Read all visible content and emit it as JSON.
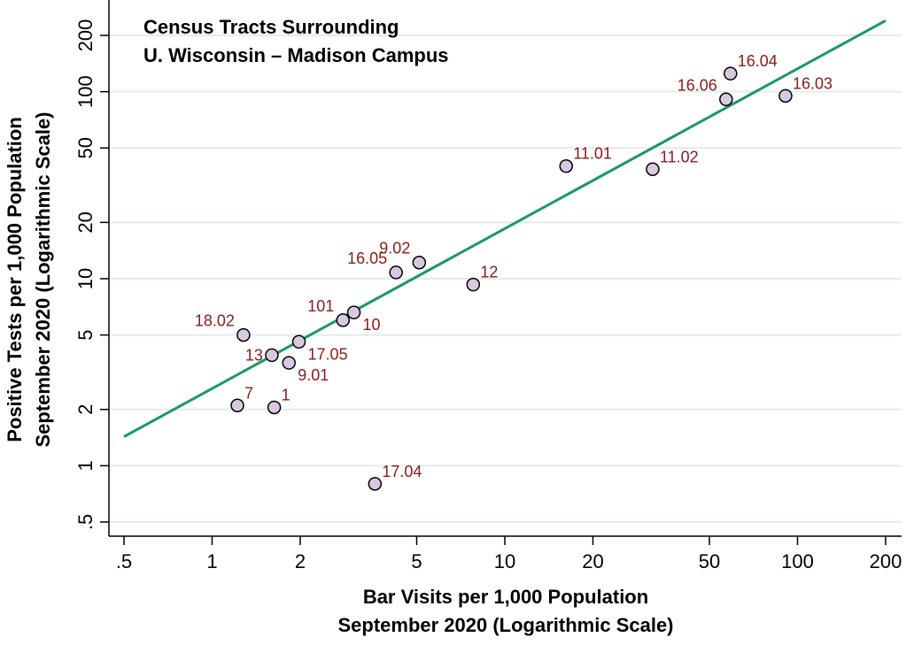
{
  "chart_data": {
    "type": "scatter",
    "title_lines": [
      "Census Tracts Surrounding",
      "U. Wisconsin – Madison Campus"
    ],
    "xlabel_lines": [
      "Bar Visits per 1,000 Population",
      "September 2020 (Logarithmic Scale)"
    ],
    "ylabel_lines": [
      "Positive Tests per 1,000 Population",
      "September 2020 (Logarithmic Scale)"
    ],
    "x_scale": "log",
    "y_scale": "log",
    "xlim": [
      0.45,
      220
    ],
    "ylim": [
      0.43,
      300
    ],
    "x_ticks": [
      0.5,
      1,
      2,
      5,
      10,
      20,
      50,
      100,
      200
    ],
    "x_tick_labels": [
      ".5",
      "1",
      "2",
      "5",
      "10",
      "20",
      "50",
      "100",
      "200"
    ],
    "y_ticks": [
      0.5,
      1,
      2,
      5,
      10,
      20,
      50,
      100,
      200
    ],
    "y_tick_labels": [
      ".5",
      "1",
      "2",
      "5",
      "10",
      "20",
      "50",
      "100",
      "200"
    ],
    "grid": "horizontal",
    "points": [
      {
        "label": "16.04",
        "x": 59,
        "y": 125,
        "label_pos": "upper-right"
      },
      {
        "label": "16.06",
        "x": 57,
        "y": 91,
        "label_pos": "upper-left"
      },
      {
        "label": "16.03",
        "x": 91,
        "y": 95,
        "label_pos": "upper-right"
      },
      {
        "label": "11.01",
        "x": 16.2,
        "y": 40,
        "label_pos": "upper-right"
      },
      {
        "label": "11.02",
        "x": 32,
        "y": 38.5,
        "label_pos": "upper-right"
      },
      {
        "label": "9.02",
        "x": 5.1,
        "y": 12.2,
        "label_pos": "upper-left"
      },
      {
        "label": "16.05",
        "x": 4.25,
        "y": 10.8,
        "label_pos": "upper-left"
      },
      {
        "label": "12",
        "x": 7.8,
        "y": 9.3,
        "label_pos": "upper-right"
      },
      {
        "label": "101",
        "x": 2.8,
        "y": 6.0,
        "label_pos": "upper-left"
      },
      {
        "label": "10",
        "x": 3.05,
        "y": 6.6,
        "label_pos": "lower-right"
      },
      {
        "label": "18.02",
        "x": 1.28,
        "y": 5.0,
        "label_pos": "upper-left"
      },
      {
        "label": "17.05",
        "x": 1.98,
        "y": 4.6,
        "label_pos": "lower-right"
      },
      {
        "label": "13",
        "x": 1.6,
        "y": 3.9,
        "label_pos": "left"
      },
      {
        "label": "9.01",
        "x": 1.83,
        "y": 3.55,
        "label_pos": "lower-right"
      },
      {
        "label": "7",
        "x": 1.22,
        "y": 2.1,
        "label_pos": "upper-right"
      },
      {
        "label": "1",
        "x": 1.63,
        "y": 2.05,
        "label_pos": "upper-right"
      },
      {
        "label": "17.04",
        "x": 3.6,
        "y": 0.8,
        "label_pos": "upper-right"
      }
    ],
    "fit_line": {
      "x": [
        0.5,
        200
      ],
      "y": [
        1.43,
        240
      ]
    },
    "colors": {
      "marker_fill": "#d8c8e0",
      "marker_stroke": "#000000",
      "label": "#8b1a1a",
      "fit_line": "#1a9863",
      "grid": "#e3ecec"
    }
  }
}
